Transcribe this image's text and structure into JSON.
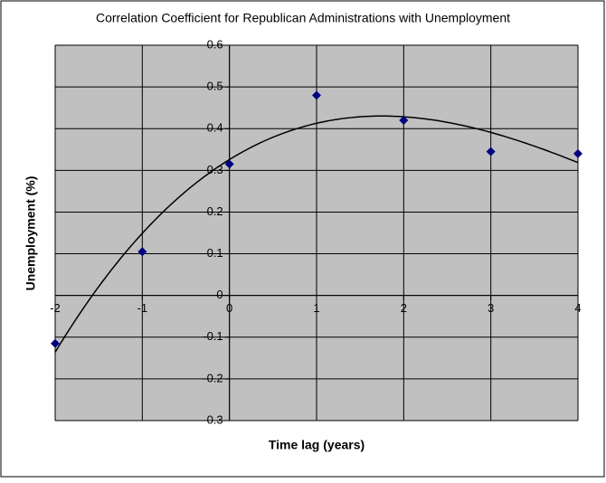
{
  "chart_data": {
    "type": "scatter",
    "title": "Correlation Coefficient for Republican Administrations with Unemployment",
    "x_label": "Time lag (years)",
    "y_label": "Unemployment (%)",
    "series": [
      {
        "x": [
          -2,
          -1,
          0,
          1,
          2,
          3,
          4
        ],
        "values": [
          -0.115,
          0.105,
          0.315,
          0.48,
          0.42,
          0.345,
          0.34
        ],
        "color": "#000080"
      }
    ],
    "xlim": [
      -2,
      4
    ],
    "xticks": [
      -2,
      -1,
      0,
      1,
      2,
      3,
      4
    ],
    "ylim": [
      -0.3,
      0.6
    ],
    "yticks": [
      -0.3,
      -0.2,
      -0.1,
      0,
      0.1,
      0.2,
      0.3,
      0.4,
      0.5,
      0.6
    ],
    "grid": true,
    "trendline_degree": 3
  }
}
